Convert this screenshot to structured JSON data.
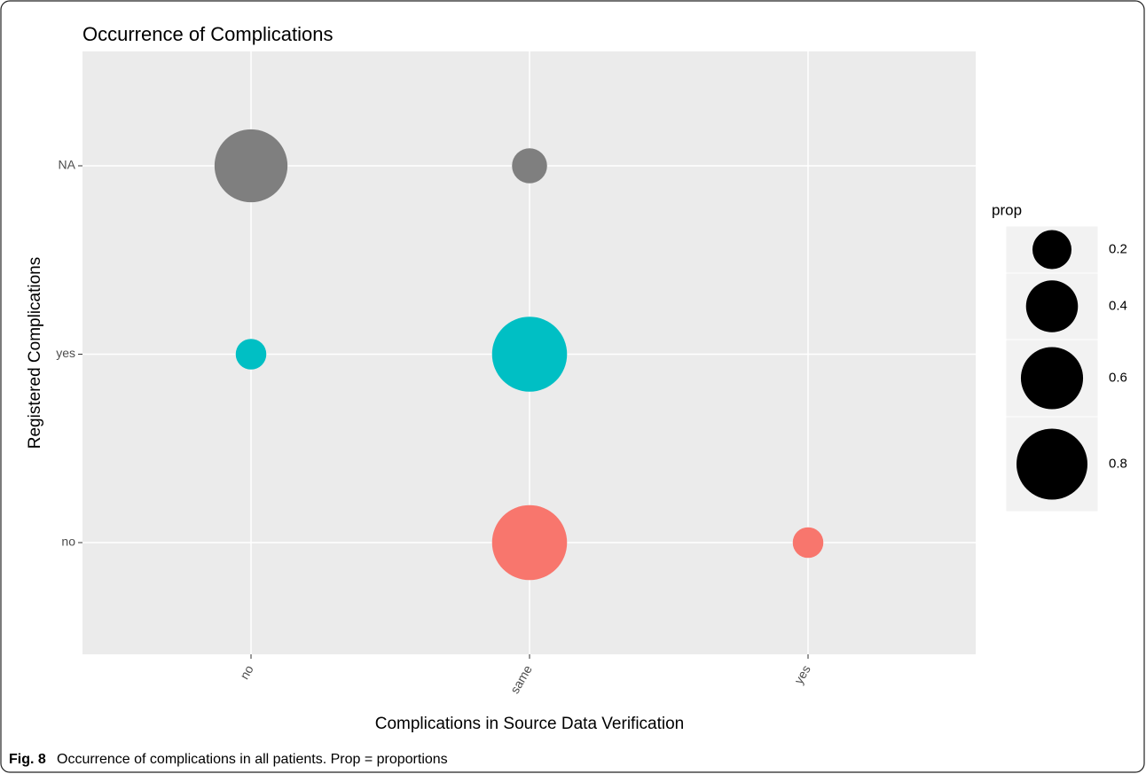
{
  "chart_data": {
    "type": "bubble",
    "title": "Occurrence of Complications",
    "x_label": "Complications in Source Data Verification",
    "y_label": "Registered Complications",
    "x_categories": [
      "no",
      "same",
      "yes"
    ],
    "y_categories": [
      "no",
      "yes",
      "NA"
    ],
    "series": [
      {
        "color": "#F8766D",
        "values": [
          null,
          0.9,
          0.1
        ]
      },
      {
        "color": "#00BFC4",
        "values": [
          0.1,
          0.9,
          null
        ]
      },
      {
        "color": "#7F7F7F",
        "values": [
          0.85,
          0.15,
          null
        ]
      }
    ],
    "size_legend": {
      "title": "prop",
      "values": [
        0.2,
        0.4,
        0.6,
        0.8
      ]
    },
    "grid": true,
    "caption_label": "Fig. 8",
    "caption": "Occurrence of complications in all patients. Prop = proportions"
  }
}
